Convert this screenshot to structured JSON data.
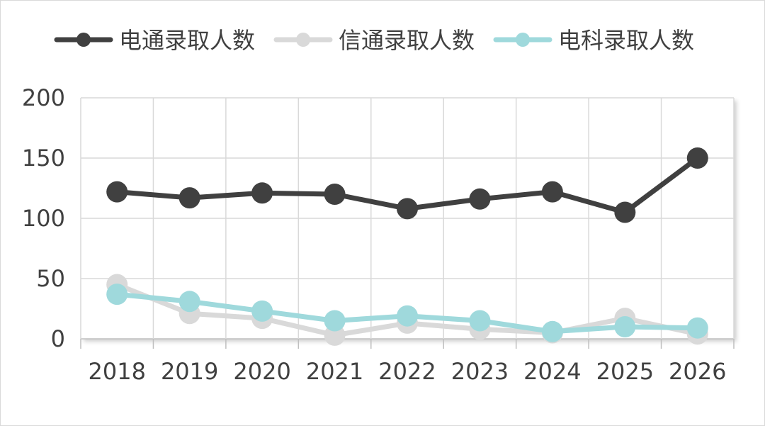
{
  "chart_data": {
    "type": "line",
    "title": "",
    "xlabel": "",
    "ylabel": "",
    "x": [
      "2018",
      "2019",
      "2020",
      "2021",
      "2022",
      "2023",
      "2024",
      "2025",
      "2026"
    ],
    "ylim": [
      0,
      200
    ],
    "yticks": [
      "0",
      "50",
      "100",
      "150",
      "200"
    ],
    "grid": true,
    "legend_position": "top",
    "series": [
      {
        "name": "电通录取人数",
        "color": "#404040",
        "values": [
          122,
          117,
          121,
          120,
          108,
          116,
          122,
          105,
          150
        ]
      },
      {
        "name": "信通录取人数",
        "color": "#d9d9d9",
        "values": [
          45,
          21,
          17,
          3,
          13,
          8,
          5,
          17,
          4
        ]
      },
      {
        "name": "电科录取人数",
        "color": "#9fd9dc",
        "values": [
          37,
          31,
          23,
          15,
          19,
          15,
          6,
          10,
          9
        ]
      }
    ]
  }
}
